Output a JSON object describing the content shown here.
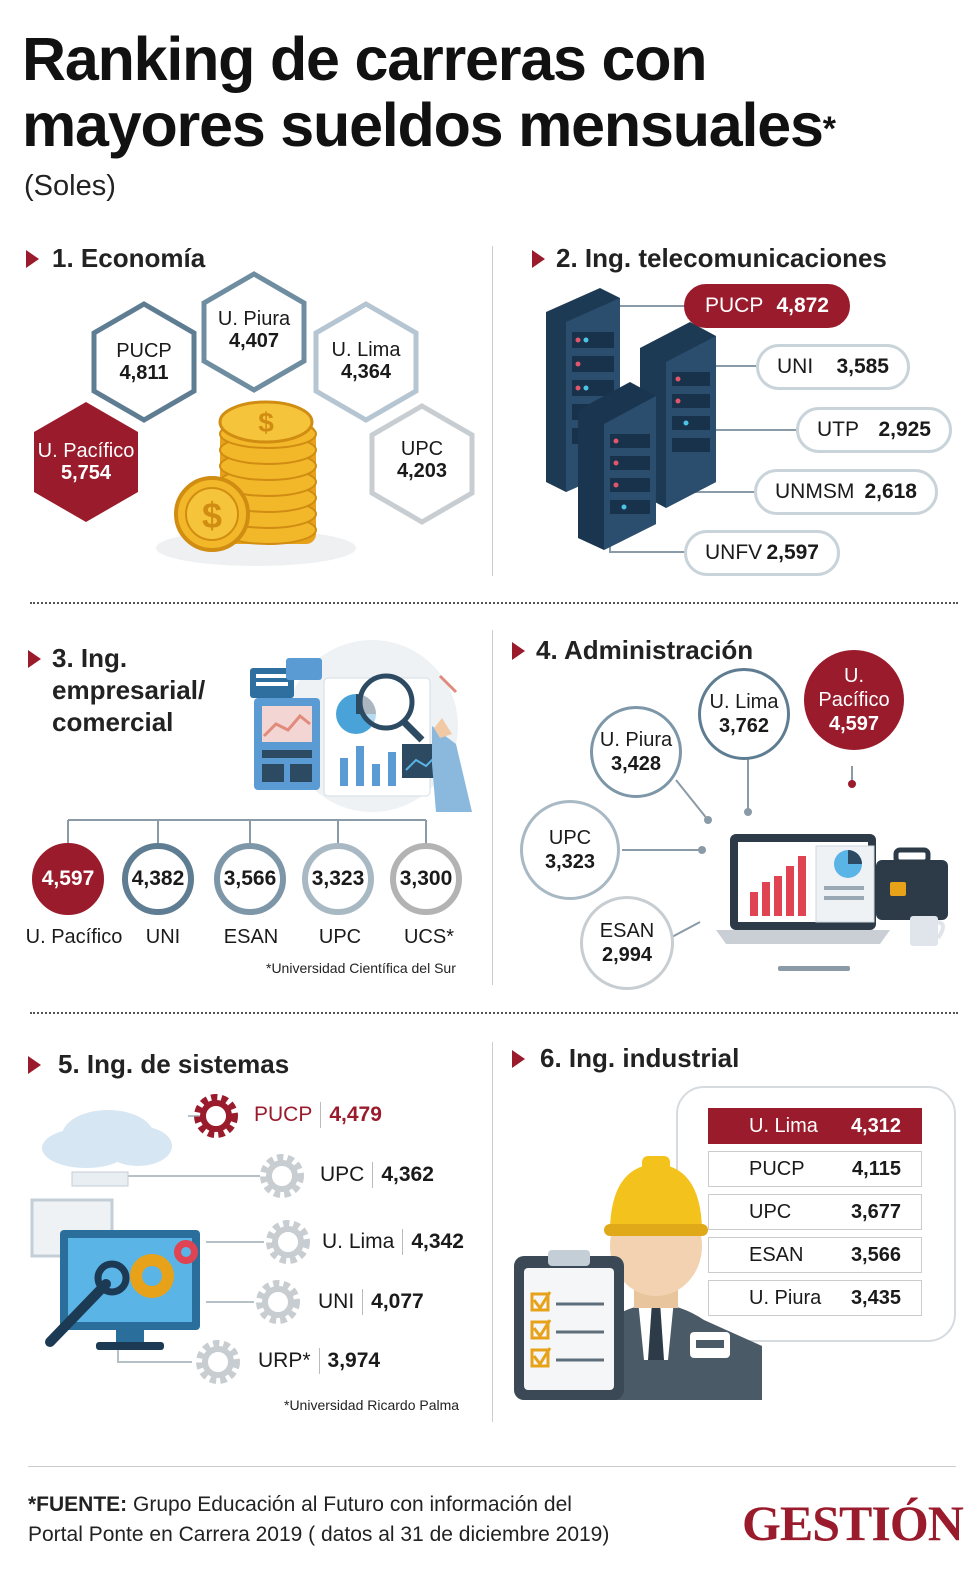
{
  "header": {
    "title_line1": "Ranking de carreras con",
    "title_line2": "mayores sueldos mensuales",
    "title_mark": "*",
    "subtitle": "(Soles)"
  },
  "economia": {
    "title": "1. Economía",
    "items": [
      {
        "name": "U. Pacífico",
        "value": "5,754"
      },
      {
        "name": "PUCP",
        "value": "4,811"
      },
      {
        "name": "U. Piura",
        "value": "4,407"
      },
      {
        "name": "U. Lima",
        "value": "4,364"
      },
      {
        "name": "UPC",
        "value": "4,203"
      }
    ]
  },
  "telecom": {
    "title": "2. Ing. telecomunicaciones",
    "items": [
      {
        "name": "PUCP",
        "value": "4,872"
      },
      {
        "name": "UNI",
        "value": "3,585"
      },
      {
        "name": "UTP",
        "value": "2,925"
      },
      {
        "name": "UNMSM",
        "value": "2,618"
      },
      {
        "name": "UNFV",
        "value": "2,597"
      }
    ]
  },
  "empresarial": {
    "title_l1": "3. Ing.",
    "title_l2": "empresarial/",
    "title_l3": "comercial",
    "items": [
      {
        "name": "U. Pacífico",
        "value": "4,597"
      },
      {
        "name": "UNI",
        "value": "4,382"
      },
      {
        "name": "ESAN",
        "value": "3,566"
      },
      {
        "name": "UPC",
        "value": "3,323"
      },
      {
        "name": "UCS*",
        "value": "3,300"
      }
    ],
    "note": "*Universidad Científica del Sur"
  },
  "administracion": {
    "title": "4. Administración",
    "items": [
      {
        "name": "U. Pacífico",
        "value": "4,597"
      },
      {
        "name": "U. Lima",
        "value": "3,762"
      },
      {
        "name": "U. Piura",
        "value": "3,428"
      },
      {
        "name": "UPC",
        "value": "3,323"
      },
      {
        "name": "ESAN",
        "value": "2,994"
      }
    ]
  },
  "sistemas": {
    "title": "5. Ing.  de sistemas",
    "items": [
      {
        "name": "PUCP",
        "value": "4,479"
      },
      {
        "name": "UPC",
        "value": "4,362"
      },
      {
        "name": "U. Lima",
        "value": "4,342"
      },
      {
        "name": "UNI",
        "value": "4,077"
      },
      {
        "name": "URP*",
        "value": "3,974"
      }
    ],
    "note": "*Universidad Ricardo Palma"
  },
  "industrial": {
    "title": "6. Ing. industrial",
    "items": [
      {
        "name": "U. Lima",
        "value": "4,312"
      },
      {
        "name": "PUCP",
        "value": "4,115"
      },
      {
        "name": "UPC",
        "value": "3,677"
      },
      {
        "name": "ESAN",
        "value": "3,566"
      },
      {
        "name": "U. Piura",
        "value": "3,435"
      }
    ]
  },
  "footer": {
    "source_label": "*FUENTE:",
    "source_text1": " Grupo Educación al Futuro con información del",
    "source_text2": "Portal Ponte en Carrera 2019  ( datos al 31 de diciembre 2019)",
    "logo": "GESTIÓN"
  },
  "colors": {
    "accent": "#9a1b2c",
    "steel": "#5f7d92",
    "light": "#b6c0c7"
  }
}
